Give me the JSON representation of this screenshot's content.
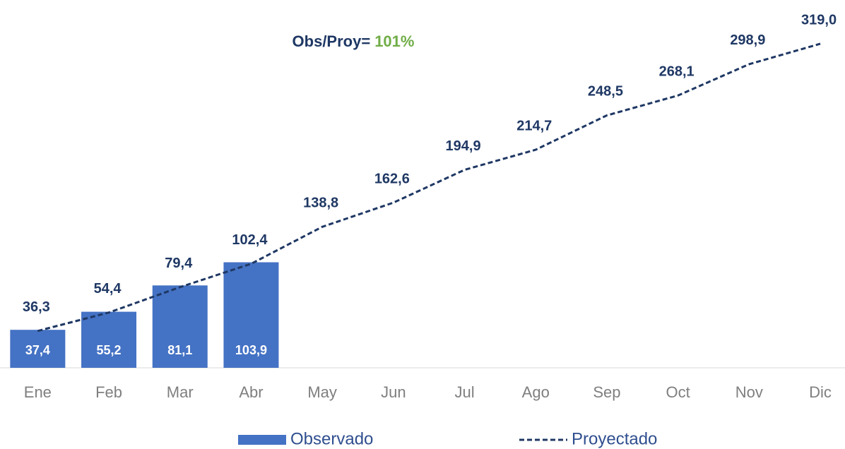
{
  "chart_data": {
    "type": "bar_line",
    "annotation": {
      "text": "Obs/Proy=",
      "value": "101%"
    },
    "categories": [
      "Ene",
      "Feb",
      "Mar",
      "Abr",
      "May",
      "Jun",
      "Jul",
      "Ago",
      "Sep",
      "Oct",
      "Nov",
      "Dic"
    ],
    "series": [
      {
        "name": "Observado",
        "type": "bar",
        "color": "#4472c4",
        "values": [
          37.4,
          55.2,
          81.1,
          103.9,
          null,
          null,
          null,
          null,
          null,
          null,
          null,
          null
        ],
        "value_labels": [
          "37,4",
          "55,2",
          "81,1",
          "103,9",
          null,
          null,
          null,
          null,
          null,
          null,
          null,
          null
        ]
      },
      {
        "name": "Proyectado",
        "type": "line",
        "color": "#1f3864",
        "dashed": true,
        "values": [
          36.3,
          54.4,
          79.4,
          102.4,
          138.8,
          162.6,
          194.9,
          214.7,
          248.5,
          268.1,
          298.9,
          319.0
        ],
        "value_labels": [
          "36,3",
          "54,4",
          "79,4",
          "102,4",
          "138,8",
          "162,6",
          "194,9",
          "214,7",
          "248,5",
          "268,1",
          "298,9",
          "319,0"
        ]
      }
    ],
    "ylim": [
      0,
      360
    ],
    "legend": "bottom"
  }
}
